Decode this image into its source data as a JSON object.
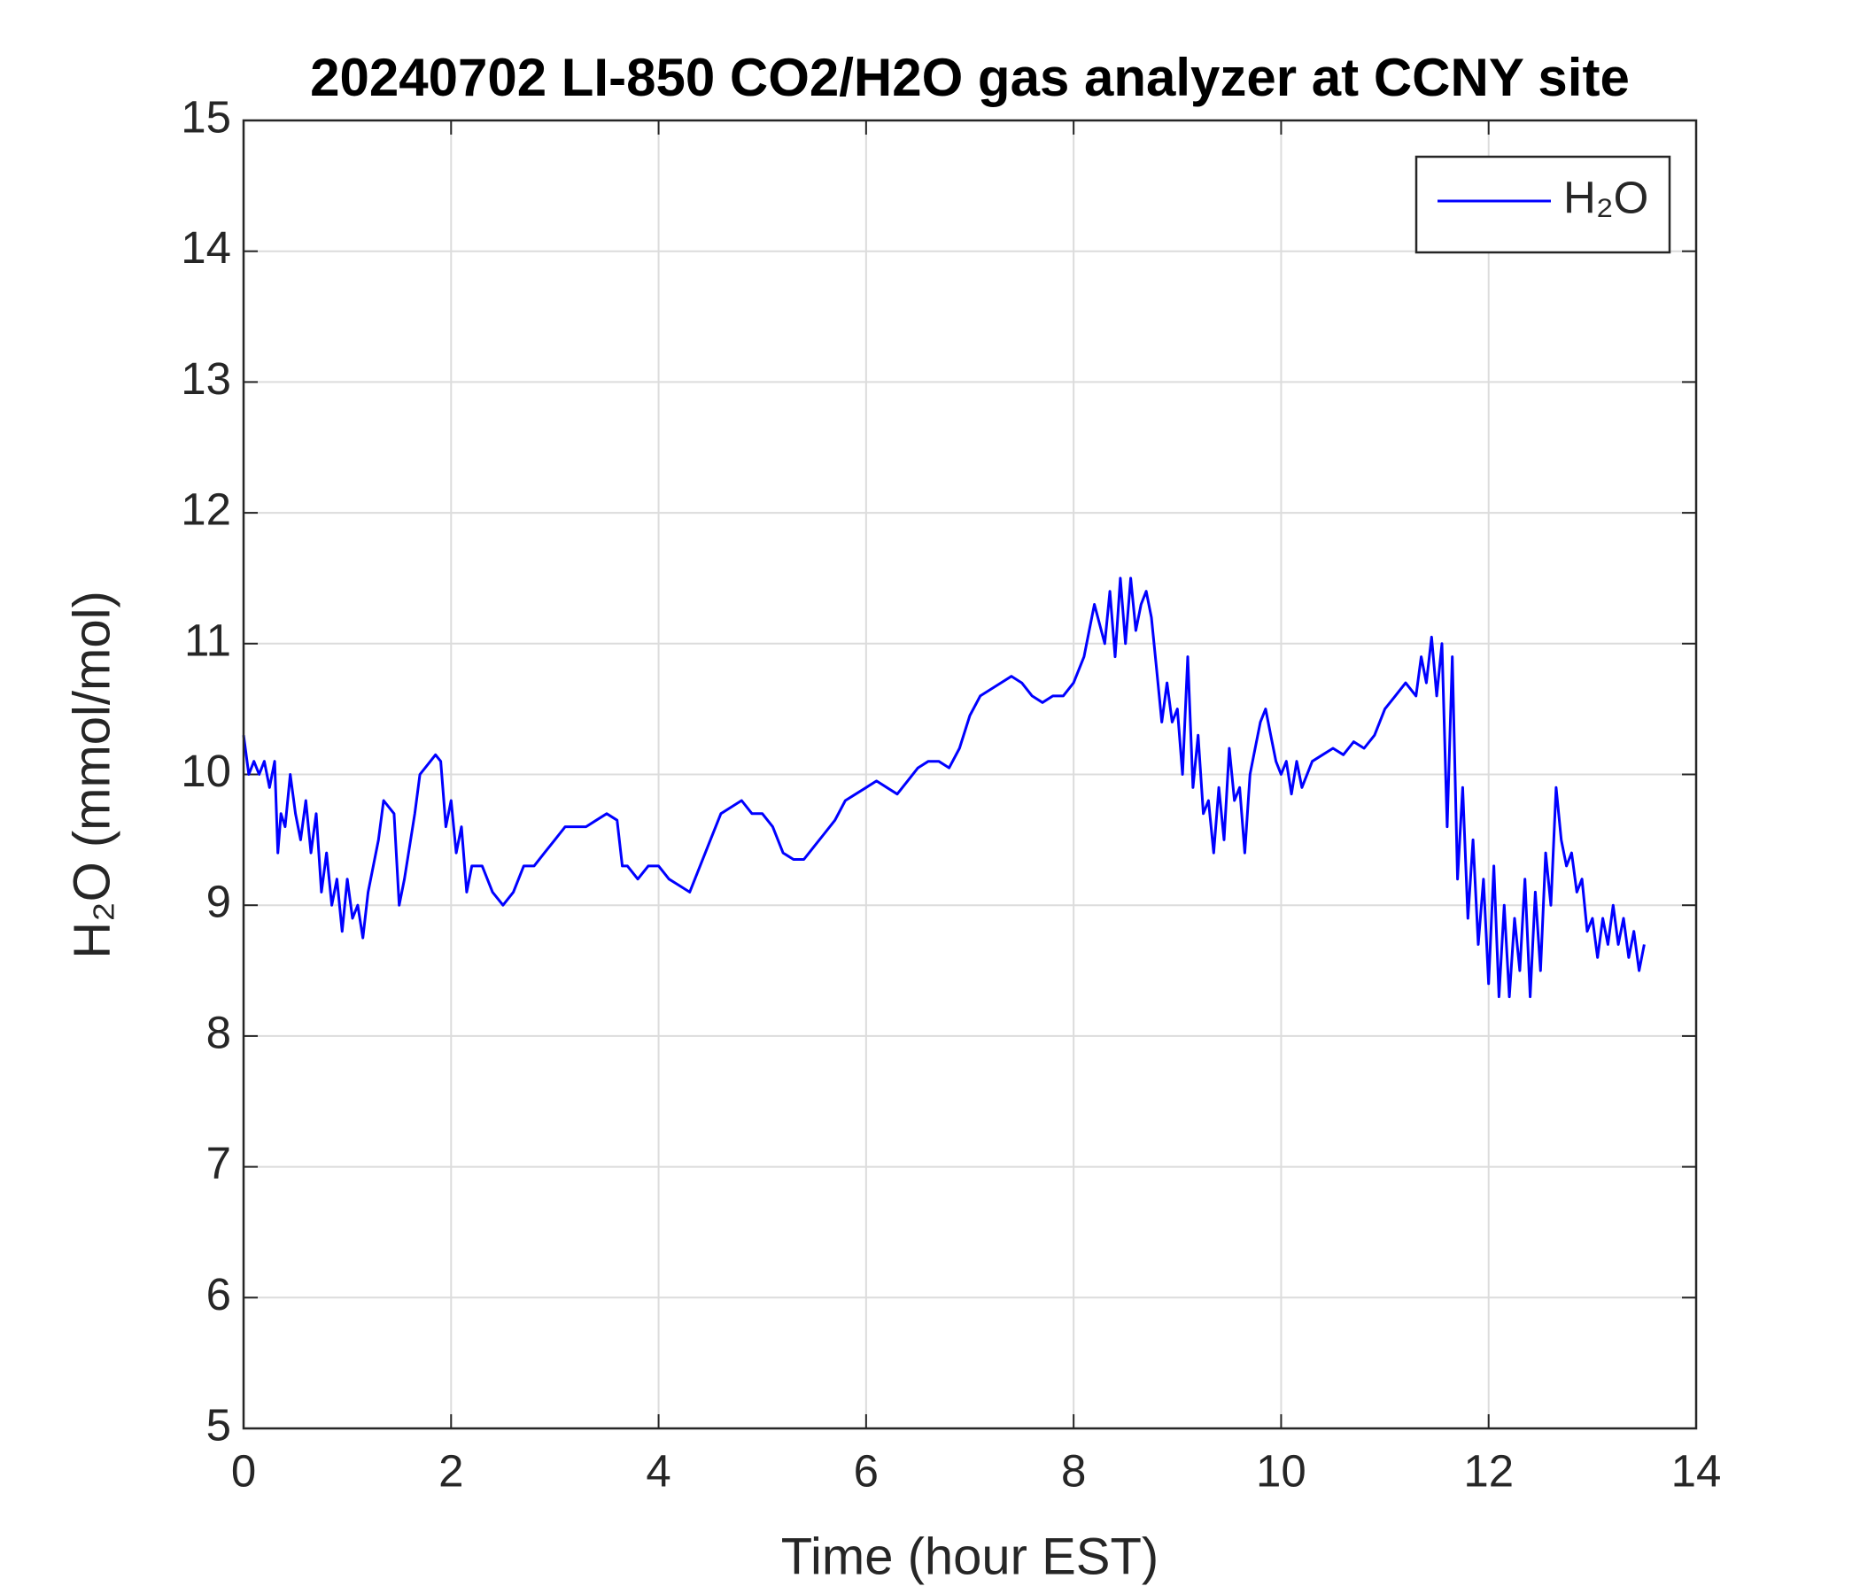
{
  "chart_data": {
    "type": "line",
    "title": "20240702 LI-850 CO2/H2O gas analyzer at CCNY site",
    "xlabel": "Time (hour EST)",
    "ylabel": "H₂O (mmol/mol)",
    "xlim": [
      0,
      14
    ],
    "xticks": [
      0,
      2,
      4,
      6,
      8,
      10,
      12,
      14
    ],
    "ylim": [
      5,
      15
    ],
    "yticks": [
      5,
      6,
      7,
      8,
      9,
      10,
      11,
      12,
      13,
      14,
      15
    ],
    "grid": true,
    "legend": "upper right",
    "x": [
      0.0,
      0.05,
      0.1,
      0.15,
      0.2,
      0.25,
      0.3,
      0.33,
      0.36,
      0.4,
      0.45,
      0.5,
      0.55,
      0.6,
      0.65,
      0.7,
      0.75,
      0.8,
      0.85,
      0.9,
      0.95,
      1.0,
      1.05,
      1.1,
      1.15,
      1.2,
      1.3,
      1.35,
      1.45,
      1.5,
      1.55,
      1.65,
      1.7,
      1.8,
      1.85,
      1.9,
      1.95,
      2.0,
      2.05,
      2.1,
      2.15,
      2.2,
      2.3,
      2.4,
      2.5,
      2.6,
      2.7,
      2.8,
      2.9,
      3.0,
      3.1,
      3.2,
      3.3,
      3.4,
      3.5,
      3.6,
      3.65,
      3.7,
      3.8,
      3.9,
      4.0,
      4.1,
      4.2,
      4.3,
      4.4,
      4.5,
      4.6,
      4.7,
      4.8,
      4.9,
      5.0,
      5.1,
      5.2,
      5.3,
      5.4,
      5.5,
      5.6,
      5.7,
      5.8,
      5.9,
      6.0,
      6.1,
      6.2,
      6.3,
      6.4,
      6.5,
      6.6,
      6.7,
      6.8,
      6.9,
      7.0,
      7.1,
      7.2,
      7.3,
      7.4,
      7.5,
      7.6,
      7.7,
      7.8,
      7.9,
      8.0,
      8.1,
      8.2,
      8.3,
      8.35,
      8.4,
      8.45,
      8.5,
      8.55,
      8.6,
      8.65,
      8.7,
      8.75,
      8.8,
      8.85,
      8.9,
      8.95,
      9.0,
      9.05,
      9.1,
      9.15,
      9.2,
      9.25,
      9.3,
      9.35,
      9.4,
      9.45,
      9.5,
      9.55,
      9.6,
      9.65,
      9.7,
      9.75,
      9.8,
      9.85,
      9.9,
      9.95,
      10.0,
      10.05,
      10.1,
      10.15,
      10.2,
      10.3,
      10.4,
      10.5,
      10.6,
      10.7,
      10.8,
      10.9,
      11.0,
      11.1,
      11.2,
      11.3,
      11.35,
      11.4,
      11.45,
      11.5,
      11.55,
      11.6,
      11.65,
      11.7,
      11.75,
      11.8,
      11.85,
      11.9,
      11.95,
      12.0,
      12.05,
      12.1,
      12.15,
      12.2,
      12.25,
      12.3,
      12.35,
      12.4,
      12.45,
      12.5,
      12.55,
      12.6,
      12.65,
      12.7,
      12.75,
      12.8,
      12.85,
      12.9,
      12.95,
      13.0,
      13.05,
      13.1,
      13.15,
      13.2,
      13.25,
      13.3,
      13.35,
      13.4,
      13.45,
      13.5
    ],
    "series": [
      {
        "name": "H₂O",
        "color": "#0000ff",
        "values": [
          10.3,
          10.0,
          10.1,
          10.0,
          10.1,
          9.9,
          10.1,
          9.4,
          9.7,
          9.6,
          10.0,
          9.7,
          9.5,
          9.8,
          9.4,
          9.7,
          9.1,
          9.4,
          9.0,
          9.2,
          8.8,
          9.2,
          8.9,
          9.0,
          8.75,
          9.1,
          9.5,
          9.8,
          9.7,
          9.0,
          9.2,
          9.7,
          10.0,
          10.1,
          10.15,
          10.1,
          9.6,
          9.8,
          9.4,
          9.6,
          9.1,
          9.3,
          9.3,
          9.1,
          9.0,
          9.1,
          9.3,
          9.3,
          9.4,
          9.5,
          9.6,
          9.6,
          9.6,
          9.65,
          9.7,
          9.65,
          9.3,
          9.3,
          9.2,
          9.3,
          9.3,
          9.2,
          9.15,
          9.1,
          9.3,
          9.5,
          9.7,
          9.75,
          9.8,
          9.7,
          9.7,
          9.6,
          9.4,
          9.35,
          9.35,
          9.45,
          9.55,
          9.65,
          9.8,
          9.85,
          9.9,
          9.95,
          9.9,
          9.85,
          9.95,
          10.05,
          10.1,
          10.1,
          10.05,
          10.2,
          10.45,
          10.6,
          10.65,
          10.7,
          10.75,
          10.7,
          10.6,
          10.55,
          10.6,
          10.6,
          10.7,
          10.9,
          11.3,
          11.0,
          11.4,
          10.9,
          11.5,
          11.0,
          11.5,
          11.1,
          11.3,
          11.4,
          11.2,
          10.8,
          10.4,
          10.7,
          10.4,
          10.5,
          10.0,
          10.9,
          9.9,
          10.3,
          9.7,
          9.8,
          9.4,
          9.9,
          9.5,
          10.2,
          9.8,
          9.9,
          9.4,
          10.0,
          10.2,
          10.4,
          10.5,
          10.3,
          10.1,
          10.0,
          10.1,
          9.85,
          10.1,
          9.9,
          10.1,
          10.15,
          10.2,
          10.15,
          10.25,
          10.2,
          10.3,
          10.5,
          10.6,
          10.7,
          10.6,
          10.9,
          10.7,
          11.05,
          10.6,
          11.0,
          9.6,
          10.9,
          9.2,
          9.9,
          8.9,
          9.5,
          8.7,
          9.2,
          8.4,
          9.3,
          8.3,
          9.0,
          8.3,
          8.9,
          8.5,
          9.2,
          8.3,
          9.1,
          8.5,
          9.4,
          9.0,
          9.9,
          9.5,
          9.3,
          9.4,
          9.1,
          9.2,
          8.8,
          8.9,
          8.6,
          8.9,
          8.7,
          9.0,
          8.7,
          8.9,
          8.6,
          8.8,
          8.5,
          8.7
        ]
      }
    ]
  }
}
